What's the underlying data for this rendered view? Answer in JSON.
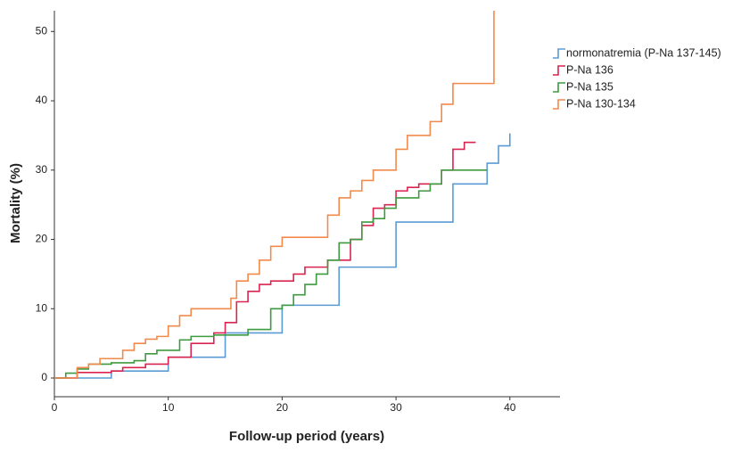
{
  "chart_data": {
    "type": "line",
    "step": true,
    "xlabel": "Follow-up period (years)",
    "ylabel": "Mortality (%)",
    "xlim": [
      0,
      44.4
    ],
    "ylim": [
      -2.7,
      53
    ],
    "xticks": [
      0,
      10,
      20,
      30,
      40
    ],
    "yticks": [
      0,
      10,
      20,
      30,
      40,
      50
    ],
    "legend": "upper right",
    "series": [
      {
        "name": "normonatremia (P-Na 137-145)",
        "color": "#5b9bd5",
        "x": [
          0,
          5,
          10,
          15,
          20,
          25,
          30,
          35,
          38,
          39,
          40
        ],
        "values": [
          0,
          1,
          3,
          6.5,
          10.5,
          16,
          22.5,
          28,
          31,
          33.5,
          35.3
        ]
      },
      {
        "name": "P-Na 136",
        "color": "#d9254f",
        "x": [
          0,
          2,
          5,
          6,
          8,
          10,
          12,
          14,
          15,
          16,
          17,
          18,
          19,
          21,
          22,
          24,
          26,
          27,
          28,
          29,
          30,
          31,
          32,
          34,
          35,
          36,
          37
        ],
        "values": [
          0,
          0.8,
          1,
          1.5,
          2,
          3,
          5,
          6.5,
          8,
          11,
          12.5,
          13.5,
          14,
          15,
          16,
          17,
          20,
          22,
          24.5,
          25,
          27,
          27.5,
          28,
          30,
          33,
          34,
          34
        ]
      },
      {
        "name": "P-Na 135",
        "color": "#3e9a3e",
        "x": [
          0,
          1,
          2,
          3,
          5,
          7,
          8,
          9,
          11,
          12,
          14,
          17,
          19,
          20,
          21,
          22,
          23,
          24,
          25,
          26,
          27,
          28,
          29,
          30,
          32,
          33,
          34,
          38
        ],
        "values": [
          0,
          0.7,
          1.3,
          2,
          2.2,
          2.5,
          3.5,
          4,
          5.5,
          6,
          6.2,
          7,
          10,
          10.5,
          12,
          13.5,
          15,
          17,
          19.5,
          20,
          22.5,
          23,
          24.5,
          26,
          27,
          28,
          30,
          30
        ]
      },
      {
        "name": "P-Na 130-134",
        "color": "#f28a4b",
        "x": [
          0,
          2,
          3,
          4,
          6,
          7,
          8,
          9,
          10,
          11,
          12,
          15.5,
          16,
          17,
          18,
          19,
          20,
          24,
          25,
          26,
          27,
          28,
          30,
          31,
          33,
          34,
          35,
          38.6
        ],
        "values": [
          0,
          1.5,
          2,
          2.8,
          4,
          5,
          5.6,
          6,
          7.5,
          9,
          10,
          11.5,
          14,
          15,
          17,
          19,
          20.3,
          23.5,
          26,
          27,
          28.5,
          30,
          33,
          35,
          37,
          39.5,
          42.5,
          53
        ]
      }
    ]
  }
}
